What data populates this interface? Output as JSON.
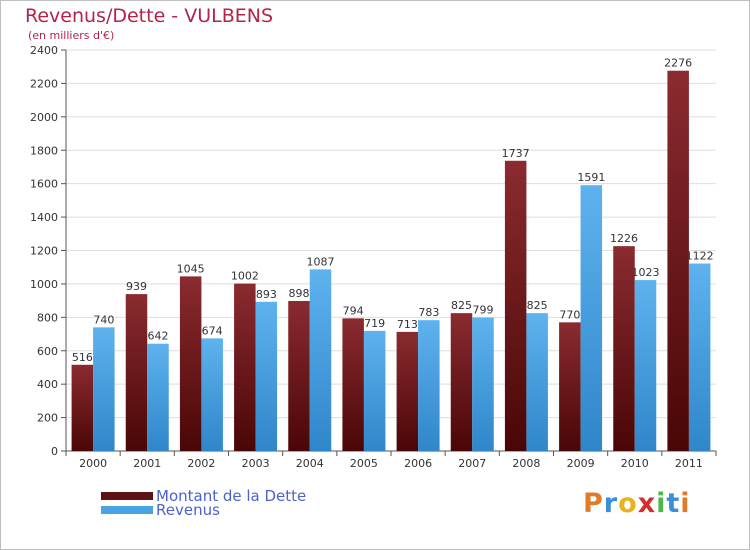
{
  "header": {
    "title": "Revenus/Dette - VULBENS",
    "subtitle": "(en milliers d'€)"
  },
  "chart_data": {
    "type": "bar",
    "categories": [
      "2000",
      "2001",
      "2002",
      "2003",
      "2004",
      "2005",
      "2006",
      "2007",
      "2008",
      "2009",
      "2010",
      "2011"
    ],
    "series": [
      {
        "name": "Montant de la Dette",
        "color": "#7a1f24",
        "values": [
          516,
          939,
          1045,
          1002,
          898,
          794,
          713,
          825,
          1737,
          770,
          1226,
          2276
        ]
      },
      {
        "name": "Revenus",
        "color": "#4aa3e3",
        "values": [
          740,
          642,
          674,
          893,
          1087,
          719,
          783,
          799,
          825,
          1591,
          1023,
          1122
        ]
      }
    ],
    "ylim": [
      0,
      2400
    ],
    "yticks": [
      0,
      200,
      400,
      600,
      800,
      1000,
      1200,
      1400,
      1600,
      1800,
      2000,
      2200,
      2400
    ],
    "grid": true,
    "legend_position": "bottom-left"
  },
  "legend": {
    "items": [
      {
        "label": "Montant de la Dette",
        "color": "#7a1f24"
      },
      {
        "label": "Revenus",
        "color": "#4aa3e3"
      }
    ]
  },
  "brand": {
    "letters": [
      "P",
      "r",
      "o",
      "x",
      "i",
      "t",
      "i"
    ],
    "colors": [
      "#e07b2c",
      "#3a8fd6",
      "#e6b422",
      "#d62e2e",
      "#4bb84b",
      "#3a8fd6",
      "#e07b2c"
    ]
  }
}
